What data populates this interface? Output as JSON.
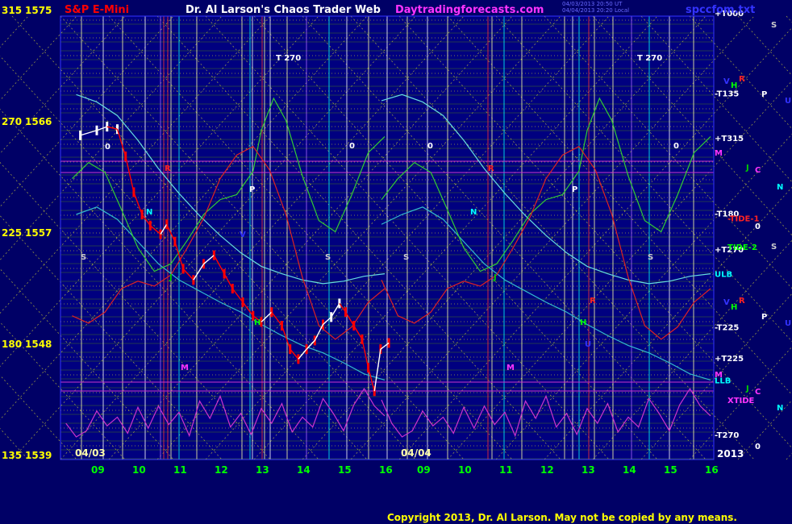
{
  "header": {
    "instrument": "S&P E-Mini",
    "title": "Dr. Al Larson's Chaos Trader Web",
    "site": "Daytradingforecasts.com",
    "file": "spccfom.txt",
    "stamp_1": "04/03/2013 20:50 UT",
    "stamp_2": "04/04/2013 20:20 Local"
  },
  "copyright": "Copyright 2013, Dr. Al Larson. May not be copied by any means.",
  "colors": {
    "background": "#000066",
    "plot_bg": "#000080",
    "price_up": "#ffffff",
    "price_down": "#ff0000",
    "grid_yellow": "#ffff00",
    "grid_green": "#66aa00",
    "flux_green": "#00cc00",
    "flux_cyan": "#33cccc",
    "flux_red": "#dd2222",
    "xtide": "#cc33cc"
  },
  "chart_data": {
    "type": "line",
    "title": "S&P E-Mini",
    "y_left_labels": [
      {
        "angle": "315",
        "price": "1575",
        "value": 1575
      },
      {
        "angle": "270",
        "price": "1566",
        "value": 1566
      },
      {
        "angle": "225",
        "price": "1557",
        "value": 1557
      },
      {
        "angle": "180",
        "price": "1548",
        "value": 1548
      },
      {
        "angle": "135",
        "price": "1539",
        "value": 1539
      }
    ],
    "ylim": [
      1539,
      1575
    ],
    "x_ticks": [
      "09",
      "10",
      "11",
      "12",
      "13",
      "14",
      "15",
      "16",
      "09",
      "10",
      "11",
      "12",
      "13",
      "14",
      "15",
      "16"
    ],
    "date_labels": [
      "04/03",
      "04/04"
    ],
    "year_label": "2013",
    "right_labels": [
      {
        "text": "+T000",
        "value": 1574.8,
        "color": "#ffffff"
      },
      {
        "text": "-T135",
        "value": 1568.3,
        "color": "#ffffff"
      },
      {
        "text": "+T315",
        "value": 1564.7,
        "color": "#ffffff"
      },
      {
        "text": "-T180",
        "value": 1558.6,
        "color": "#ffffff"
      },
      {
        "text": "+T270",
        "value": 1555.7,
        "color": "#ffffff"
      },
      {
        "text": "ULB",
        "value": 1553.7,
        "color": "#00ffff"
      },
      {
        "text": "-T225",
        "value": 1549.4,
        "color": "#ffffff"
      },
      {
        "text": "+T225",
        "value": 1546.9,
        "color": "#ffffff"
      },
      {
        "text": "LLB",
        "value": 1545.1,
        "color": "#00ffff"
      },
      {
        "text": "-T270",
        "value": 1540.7,
        "color": "#ffffff"
      }
    ],
    "tide_labels": [
      {
        "text": "-TIDE-1",
        "value": 1558.2,
        "color": "#ff2222"
      },
      {
        "text": "TIDE-2",
        "value": 1555.9,
        "color": "#00ff00"
      },
      {
        "text": "XTIDE",
        "value": 1543.5,
        "color": "#ff33ff"
      }
    ],
    "planet_panel": [
      {
        "text": "S",
        "color": "#cccccc",
        "x": 956,
        "y": 34
      },
      {
        "text": "V",
        "color": "#3333ff",
        "x": 897,
        "y": 104
      },
      {
        "text": "R",
        "color": "#ff2222",
        "x": 916,
        "y": 101
      },
      {
        "text": "H",
        "color": "#00ff00",
        "x": 906,
        "y": 109
      },
      {
        "text": "P",
        "color": "#ffffff",
        "x": 944,
        "y": 120
      },
      {
        "text": "U",
        "color": "#3333ff",
        "x": 973,
        "y": 128
      },
      {
        "text": "M",
        "color": "#ff33ff",
        "x": 886,
        "y": 193
      },
      {
        "text": "J",
        "color": "#00cc00",
        "x": 925,
        "y": 211
      },
      {
        "text": "C",
        "color": "#ff33ff",
        "x": 936,
        "y": 214
      },
      {
        "text": "N",
        "color": "#00ffff",
        "x": 963,
        "y": 235
      },
      {
        "text": "0",
        "color": "#ffffff",
        "x": 936,
        "y": 284
      },
      {
        "text": "S",
        "color": "#cccccc",
        "x": 956,
        "y": 309
      },
      {
        "text": "V",
        "color": "#3333ff",
        "x": 897,
        "y": 378
      },
      {
        "text": "R",
        "color": "#ff2222",
        "x": 916,
        "y": 376
      },
      {
        "text": "H",
        "color": "#00ff00",
        "x": 906,
        "y": 384
      },
      {
        "text": "P",
        "color": "#ffffff",
        "x": 944,
        "y": 396
      },
      {
        "text": "U",
        "color": "#3333ff",
        "x": 973,
        "y": 404
      },
      {
        "text": "M",
        "color": "#ff33ff",
        "x": 886,
        "y": 468
      },
      {
        "text": "J",
        "color": "#00cc00",
        "x": 925,
        "y": 485
      },
      {
        "text": "C",
        "color": "#ff33ff",
        "x": 936,
        "y": 489
      },
      {
        "text": "N",
        "color": "#00ffff",
        "x": 963,
        "y": 509
      },
      {
        "text": "0",
        "color": "#ffffff",
        "x": 936,
        "y": 557
      }
    ],
    "plot_markers": [
      {
        "text": "T  270",
        "color": "#ffffff",
        "x": 342,
        "y": 75
      },
      {
        "text": "T  270",
        "color": "#ffffff",
        "x": 790,
        "y": 75
      },
      {
        "text": "0",
        "color": "#ffffff",
        "x": 130,
        "y": 185
      },
      {
        "text": "0",
        "color": "#ffffff",
        "x": 433,
        "y": 184
      },
      {
        "text": "0",
        "color": "#ffffff",
        "x": 530,
        "y": 184
      },
      {
        "text": "0",
        "color": "#ffffff",
        "x": 835,
        "y": 184
      },
      {
        "text": "P",
        "color": "#ffffff",
        "x": 309,
        "y": 238
      },
      {
        "text": "P",
        "color": "#ffffff",
        "x": 709,
        "y": 238
      },
      {
        "text": "S",
        "color": "#cccccc",
        "x": 100,
        "y": 322
      },
      {
        "text": "S",
        "color": "#cccccc",
        "x": 403,
        "y": 322
      },
      {
        "text": "S",
        "color": "#cccccc",
        "x": 500,
        "y": 322
      },
      {
        "text": "S",
        "color": "#cccccc",
        "x": 803,
        "y": 322
      },
      {
        "text": "N",
        "color": "#00ffff",
        "x": 181,
        "y": 266
      },
      {
        "text": "N",
        "color": "#00ffff",
        "x": 583,
        "y": 266
      },
      {
        "text": "M",
        "color": "#ff33ff",
        "x": 224,
        "y": 459
      },
      {
        "text": "M",
        "color": "#ff33ff",
        "x": 628,
        "y": 459
      },
      {
        "text": "H",
        "color": "#00ff00",
        "x": 315,
        "y": 403
      },
      {
        "text": "H",
        "color": "#00ff00",
        "x": 719,
        "y": 403
      },
      {
        "text": "R",
        "color": "#ff2222",
        "x": 204,
        "y": 212
      },
      {
        "text": "R",
        "color": "#ff2222",
        "x": 605,
        "y": 212
      },
      {
        "text": "R",
        "color": "#ff2222",
        "x": 731,
        "y": 376
      },
      {
        "text": "V",
        "color": "#3333ff",
        "x": 297,
        "y": 294
      },
      {
        "text": "J",
        "color": "#00cc00",
        "x": 210,
        "y": 347
      },
      {
        "text": "J",
        "color": "#00cc00",
        "x": 612,
        "y": 347
      },
      {
        "text": "U",
        "color": "#3333ff",
        "x": 725,
        "y": 430
      }
    ],
    "series": [
      {
        "name": "price",
        "color": "#ff0000",
        "x": [
          8.6,
          9.0,
          9.25,
          9.5,
          9.7,
          9.9,
          10.1,
          10.3,
          10.55,
          10.7,
          10.9,
          11.1,
          11.35,
          11.6,
          11.85,
          12.1,
          12.3,
          12.55,
          12.8,
          13.0,
          13.25,
          13.5,
          13.7,
          13.9,
          14.1,
          14.3,
          14.5,
          14.7,
          14.9,
          15.05,
          15.25,
          15.45,
          15.6,
          15.75,
          15.9,
          16.1
        ],
        "y": [
          1564.9,
          1565.3,
          1565.6,
          1565.4,
          1563.2,
          1560.3,
          1558.5,
          1557.6,
          1556.9,
          1557.7,
          1556.3,
          1554.1,
          1553.2,
          1554.5,
          1555.2,
          1553.7,
          1552.5,
          1551.4,
          1550.3,
          1549.8,
          1550.6,
          1549.5,
          1547.6,
          1546.8,
          1547.6,
          1548.3,
          1549.6,
          1550.2,
          1551.3,
          1550.6,
          1549.5,
          1548.4,
          1546.1,
          1544.2,
          1547.6,
          1548.1
        ]
      },
      {
        "name": "band-upper",
        "color": "#66dddd",
        "x": [
          8.0,
          8.5,
          9.0,
          9.5,
          10.0,
          10.5,
          11.0,
          11.5,
          12.0,
          12.5,
          13.0,
          13.5,
          14.0,
          14.5,
          15.0,
          15.5,
          16.0
        ],
        "y": [
          1567.7,
          1568.2,
          1567.6,
          1566.5,
          1564.5,
          1562.2,
          1560.2,
          1558.4,
          1556.8,
          1555.4,
          1554.3,
          1553.7,
          1553.2,
          1552.9,
          1553.1,
          1553.5,
          1553.7
        ]
      },
      {
        "name": "band-lower",
        "color": "#33bbcc",
        "x": [
          8.0,
          8.5,
          9.0,
          9.5,
          10.0,
          10.5,
          11.0,
          11.5,
          12.0,
          12.5,
          13.0,
          13.5,
          14.0,
          14.5,
          15.0,
          15.5,
          16.0
        ],
        "y": [
          1557.7,
          1558.5,
          1559.1,
          1558.1,
          1556.3,
          1554.5,
          1553.2,
          1552.3,
          1551.4,
          1550.6,
          1549.6,
          1548.7,
          1547.9,
          1547.3,
          1546.5,
          1545.6,
          1545.1
        ]
      },
      {
        "name": "tide-2",
        "color": "#33cc33",
        "x": [
          8.0,
          8.4,
          8.8,
          9.2,
          9.6,
          10.0,
          10.4,
          10.8,
          11.2,
          11.6,
          12.0,
          12.4,
          12.8,
          13.0,
          13.3,
          13.6,
          14.0,
          14.4,
          14.8,
          15.2,
          15.6,
          16.0
        ],
        "y": [
          1559.7,
          1561.4,
          1562.7,
          1561.9,
          1558.9,
          1555.8,
          1553.9,
          1554.5,
          1556.4,
          1558.5,
          1559.7,
          1560.1,
          1562.0,
          1565.3,
          1567.9,
          1566.1,
          1561.6,
          1558.0,
          1557.1,
          1560.1,
          1563.5,
          1564.8
        ]
      },
      {
        "name": "tide-1",
        "color": "#dd2222",
        "x": [
          8.0,
          8.4,
          8.8,
          9.2,
          9.6,
          10.0,
          10.4,
          10.8,
          11.2,
          11.6,
          12.0,
          12.4,
          12.8,
          13.2,
          13.6,
          14.0,
          14.4,
          14.8,
          15.2,
          15.6,
          16.0
        ],
        "y": [
          1553.2,
          1550.3,
          1549.7,
          1550.6,
          1552.5,
          1553.1,
          1552.7,
          1553.6,
          1555.8,
          1558.2,
          1561.4,
          1563.3,
          1564.0,
          1562.1,
          1558.5,
          1553.4,
          1549.5,
          1548.4,
          1549.4,
          1551.4,
          1552.5
        ]
      }
    ],
    "xtide_series": {
      "name": "XTIDE",
      "color": "#cc33cc",
      "x": [
        8.0,
        8.25,
        8.5,
        8.75,
        9.0,
        9.25,
        9.5,
        9.75,
        10.0,
        10.25,
        10.5,
        10.75,
        11.0,
        11.25,
        11.5,
        11.75,
        12.0,
        12.25,
        12.5,
        12.75,
        13.0,
        13.25,
        13.5,
        13.75,
        14.0,
        14.25,
        14.5,
        14.75,
        15.0,
        15.25,
        15.5,
        15.75,
        16.0
      ],
      "y": [
        1543.5,
        1541.6,
        1540.5,
        1541.0,
        1542.6,
        1541.4,
        1542.1,
        1540.8,
        1542.9,
        1541.2,
        1543.0,
        1541.5,
        1542.5,
        1540.6,
        1543.4,
        1542.0,
        1543.8,
        1541.3,
        1542.4,
        1540.7,
        1542.8,
        1541.6,
        1543.2,
        1540.9,
        1542.1,
        1541.3,
        1543.6,
        1542.4,
        1541.0,
        1543.1,
        1544.4,
        1543.0,
        1542.2
      ]
    },
    "grid_on": true
  }
}
